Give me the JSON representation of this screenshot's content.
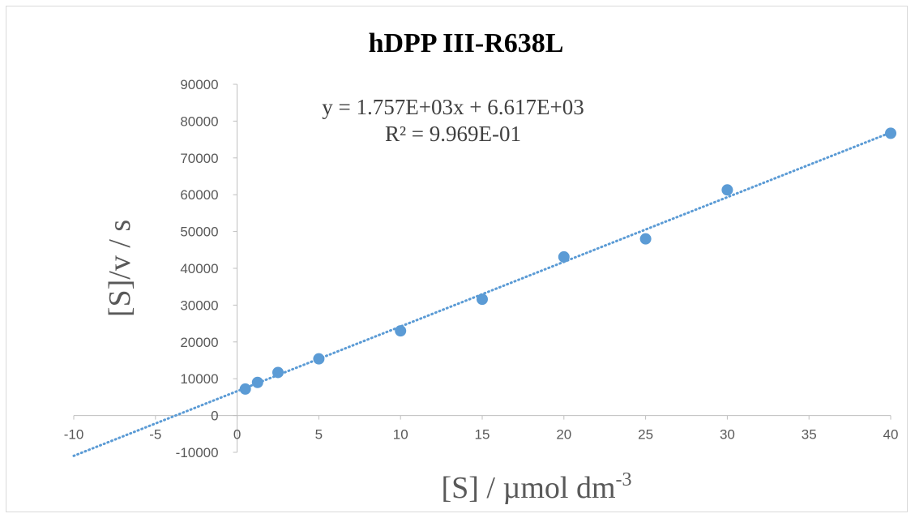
{
  "chart_data": {
    "type": "scatter",
    "title": "hDPP III-R638L",
    "xlabel": "[S] / µmol dm",
    "xlabel_sup": "-3",
    "ylabel": "[S]/v / s",
    "xlim": [
      -10,
      40
    ],
    "ylim": [
      -10000,
      90000
    ],
    "x_ticks": [
      -10,
      -5,
      0,
      5,
      10,
      15,
      20,
      25,
      30,
      35,
      40
    ],
    "y_ticks": [
      -10000,
      0,
      10000,
      20000,
      30000,
      40000,
      50000,
      60000,
      70000,
      80000,
      90000
    ],
    "grid": false,
    "legend": "none",
    "series": [
      {
        "x": [
          0.5,
          1.25,
          2.5,
          5,
          10,
          15,
          20,
          25,
          30,
          40
        ],
        "y": [
          7200,
          9000,
          11700,
          15400,
          23000,
          31600,
          43100,
          48000,
          61300,
          76700
        ],
        "color": "#5b9bd5"
      }
    ],
    "trendline": {
      "type": "linear",
      "slope": 1757,
      "intercept": 6617,
      "x_range": [
        -10,
        40
      ],
      "style": "dotted",
      "color": "#5b9bd5",
      "equation": "y = 1.757E+03x + 6.617E+03",
      "r_squared": "R² = 9.969E-01"
    }
  }
}
